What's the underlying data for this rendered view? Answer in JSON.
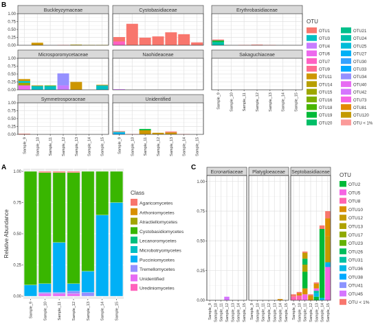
{
  "panel_labels": {
    "a": "A",
    "b": "B",
    "c": "C"
  },
  "chart_data": [
    {
      "id": "B",
      "type": "bar",
      "stacked": true,
      "facets": true,
      "x": [
        "Sample_9",
        "Sample_10",
        "Sample_11",
        "Sample_12",
        "Sample_13",
        "Sample_14",
        "Sample_15"
      ],
      "yticks": [
        "0.00",
        "0.25",
        "0.50",
        "0.75",
        "1.00"
      ],
      "ylim": [
        0,
        1
      ],
      "legend": {
        "title": "OTU",
        "position": "right",
        "entries": [
          {
            "name": "OTU1",
            "color": "#F8766D"
          },
          {
            "name": "OTU3",
            "color": "#00BFC4"
          },
          {
            "name": "OTU4",
            "color": "#C77CFF"
          },
          {
            "name": "OTU6",
            "color": "#ED68ED"
          },
          {
            "name": "OTU7",
            "color": "#FF61C3"
          },
          {
            "name": "OTU9",
            "color": "#FF6C91"
          },
          {
            "name": "OTU11",
            "color": "#CD9600"
          },
          {
            "name": "OTU14",
            "color": "#B79F00"
          },
          {
            "name": "OTU15",
            "color": "#9DA700"
          },
          {
            "name": "OTU16",
            "color": "#7CAE00"
          },
          {
            "name": "OTU18",
            "color": "#49B500"
          },
          {
            "name": "OTU19",
            "color": "#00BA38"
          },
          {
            "name": "OTU20",
            "color": "#00BE67"
          },
          {
            "name": "OTU21",
            "color": "#00C08B"
          },
          {
            "name": "OTU24",
            "color": "#00C1A9"
          },
          {
            "name": "OTU25",
            "color": "#00BCD8"
          },
          {
            "name": "OTU27",
            "color": "#00B0F6"
          },
          {
            "name": "OTU30",
            "color": "#35A2FF"
          },
          {
            "name": "OTU33",
            "color": "#00A9FF"
          },
          {
            "name": "OTU34",
            "color": "#9590FF"
          },
          {
            "name": "OTU40",
            "color": "#E76BF3"
          },
          {
            "name": "OTU42",
            "color": "#D575FE"
          },
          {
            "name": "OTU73",
            "color": "#F564E3"
          },
          {
            "name": "OTU81",
            "color": "#E38900"
          },
          {
            "name": "OTU120",
            "color": "#C49A00"
          },
          {
            "name": "OTU < 1%",
            "color": "#FB9A99"
          }
        ]
      },
      "facet_panels": [
        {
          "title": "Buckleyzymaceae",
          "bars": [
            [],
            [
              {
                "otu": "OTU11",
                "value": 0.08
              }
            ],
            [],
            [
              {
                "otu": "OTU1",
                "value": 0.01
              }
            ],
            [
              {
                "otu": "OTU14",
                "value": 0.02
              }
            ],
            [
              {
                "otu": "OTU14",
                "value": 0.01
              }
            ],
            [
              {
                "otu": "OTU14",
                "value": 0.01
              }
            ]
          ]
        },
        {
          "title": "Cystobasidiaceae",
          "bars": [
            [
              {
                "otu": "OTU7",
                "value": 0.12
              },
              {
                "otu": "OTU1",
                "value": 0.14
              }
            ],
            [
              {
                "otu": "OTU1",
                "value": 0.68
              }
            ],
            [
              {
                "otu": "OTU1",
                "value": 0.24
              }
            ],
            [
              {
                "otu": "OTU1",
                "value": 0.28
              }
            ],
            [
              {
                "otu": "OTU1",
                "value": 0.41
              }
            ],
            [
              {
                "otu": "OTU1",
                "value": 0.35
              }
            ],
            [
              {
                "otu": "OTU1",
                "value": 0.09
              }
            ]
          ]
        },
        {
          "title": "Erythrobasidiaceae",
          "bars": [
            [
              {
                "otu": "OTU24",
                "value": 0.1
              },
              {
                "otu": "OTU19",
                "value": 0.05
              },
              {
                "otu": "OTU1",
                "value": 0.03
              }
            ],
            [],
            [
              {
                "otu": "OTU1",
                "value": 0.01
              }
            ],
            [
              {
                "otu": "OTU1",
                "value": 0.02
              }
            ],
            [
              {
                "otu": "OTU1",
                "value": 0.01
              }
            ],
            [],
            []
          ]
        },
        {
          "title": "Microsporomycetaceae",
          "bars": [
            [
              {
                "otu": "OTU6",
                "value": 0.14
              },
              {
                "otu": "OTU15",
                "value": 0.08
              },
              {
                "otu": "OTU3",
                "value": 0.06
              },
              {
                "otu": "OTU11",
                "value": 0.06
              }
            ],
            [
              {
                "otu": "OTU3",
                "value": 0.12
              },
              {
                "otu": "OTU11",
                "value": 0.02
              }
            ],
            [
              {
                "otu": "OTU3",
                "value": 0.12
              },
              {
                "otu": "OTU16",
                "value": 0.02
              }
            ],
            [
              {
                "otu": "OTU4",
                "value": 0.14
              },
              {
                "otu": "OTU34",
                "value": 0.38
              }
            ],
            [
              {
                "otu": "OTU11",
                "value": 0.25
              }
            ],
            [],
            [
              {
                "otu": "OTU3",
                "value": 0.14
              },
              {
                "otu": "OTU11",
                "value": 0.02
              }
            ]
          ]
        },
        {
          "title": "Naohideaceae",
          "bars": [
            [
              {
                "otu": "OTU42",
                "value": 0.02
              }
            ],
            [],
            [],
            [],
            [],
            [],
            []
          ]
        },
        {
          "title": "Sakaguchiaceae",
          "bars": [
            [],
            [],
            [],
            [],
            [],
            [],
            []
          ]
        },
        {
          "title": "Symmetrosporaceae",
          "bars": [
            [
              {
                "otu": "OTU1",
                "value": 0.02
              }
            ],
            [],
            [],
            [],
            [],
            [],
            []
          ]
        },
        {
          "title": "Unidentified",
          "bars": [
            [
              {
                "otu": "OTU27",
                "value": 0.06
              },
              {
                "otu": "OTU24",
                "value": 0.02
              },
              {
                "otu": "OTU1",
                "value": 0.02
              }
            ],
            [
              {
                "otu": "OTU1",
                "value": 0.01
              }
            ],
            [
              {
                "otu": "OTU11",
                "value": 0.13
              },
              {
                "otu": "OTU19",
                "value": 0.04
              }
            ],
            [
              {
                "otu": "OTU11",
                "value": 0.05
              }
            ],
            [
              {
                "otu": "OTU11",
                "value": 0.06
              },
              {
                "otu": "OTU1",
                "value": 0.03
              }
            ],
            [
              {
                "otu": "OTU1",
                "value": 0.01
              }
            ],
            []
          ]
        }
      ]
    },
    {
      "id": "A",
      "type": "bar",
      "stacked": true,
      "ylabel": "Relative Abundance",
      "x": [
        "Sample_9",
        "Sample_10",
        "Sample_11",
        "Sample_12",
        "Sample_13",
        "Sample_14",
        "Sample_15"
      ],
      "yticks": [
        "0.00",
        "0.25",
        "0.50",
        "0.75",
        "1.00"
      ],
      "ylim": [
        0,
        1
      ],
      "legend": {
        "title": "Class",
        "position": "right",
        "entries": [
          {
            "name": "Agaricomycetes",
            "color": "#F8766D"
          },
          {
            "name": "Arthoniomycetes",
            "color": "#D89000"
          },
          {
            "name": "Atractiellomycetes",
            "color": "#A3A500"
          },
          {
            "name": "Cystobasidiomycetes",
            "color": "#39B600"
          },
          {
            "name": "Lecanoromycetes",
            "color": "#00BF7D"
          },
          {
            "name": "Microbotryomycetes",
            "color": "#00BFC4"
          },
          {
            "name": "Pucciniomycetes",
            "color": "#00B0F6"
          },
          {
            "name": "Tremellomycetes",
            "color": "#9590FF"
          },
          {
            "name": "Unidentified",
            "color": "#E76BF3"
          },
          {
            "name": "Urediniomycetes",
            "color": "#FF62BC"
          }
        ]
      },
      "series": [
        {
          "name": "Urediniomycetes",
          "values": [
            0.0,
            0.0,
            0.0,
            0.0,
            0.0,
            0.0,
            0.0
          ]
        },
        {
          "name": "Unidentified",
          "values": [
            0.0,
            0.02,
            0.02,
            0.02,
            0.0,
            0.0,
            0.0
          ]
        },
        {
          "name": "Tremellomycetes",
          "values": [
            0.0,
            0.01,
            0.01,
            0.02,
            0.03,
            0.0,
            0.0
          ]
        },
        {
          "name": "Pucciniomycetes",
          "values": [
            0.09,
            0.07,
            0.4,
            0.06,
            0.17,
            0.65,
            0.75
          ]
        },
        {
          "name": "Microbotryomycetes",
          "values": [
            0.0,
            0.0,
            0.0,
            0.0,
            0.0,
            0.0,
            0.0
          ]
        },
        {
          "name": "Lecanoromycetes",
          "values": [
            0.0,
            0.0,
            0.0,
            0.0,
            0.0,
            0.0,
            0.0
          ]
        },
        {
          "name": "Cystobasidiomycetes",
          "values": [
            0.91,
            0.89,
            0.56,
            0.89,
            0.8,
            0.35,
            0.25
          ]
        },
        {
          "name": "Atractiellomycetes",
          "values": [
            0.0,
            0.0,
            0.0,
            0.0,
            0.0,
            0.0,
            0.0
          ]
        },
        {
          "name": "Arthoniomycetes",
          "values": [
            0.0,
            0.0,
            0.0,
            0.0,
            0.0,
            0.0,
            0.0
          ]
        },
        {
          "name": "Agaricomycetes",
          "values": [
            0.0,
            0.01,
            0.01,
            0.01,
            0.0,
            0.0,
            0.0
          ]
        }
      ]
    },
    {
      "id": "C",
      "type": "bar",
      "stacked": true,
      "facets": true,
      "x": [
        "Sample_9",
        "Sample_10",
        "Sample_11",
        "Sample_12",
        "Sample_13",
        "Sample_14",
        "Sample_15"
      ],
      "yticks": [
        "0.00",
        "0.25",
        "0.50",
        "0.75",
        "1.00"
      ],
      "ylim": [
        0,
        1
      ],
      "legend": {
        "title": "OTU",
        "position": "right",
        "entries": [
          {
            "name": "OTU2",
            "color": "#00BA38"
          },
          {
            "name": "OTU5",
            "color": "#F564E3"
          },
          {
            "name": "OTU8",
            "color": "#FF64B0"
          },
          {
            "name": "OTU10",
            "color": "#DB8E00"
          },
          {
            "name": "OTU12",
            "color": "#C49A00"
          },
          {
            "name": "OTU13",
            "color": "#AEA200"
          },
          {
            "name": "OTU17",
            "color": "#8FAA00"
          },
          {
            "name": "OTU23",
            "color": "#64B200"
          },
          {
            "name": "OTU26",
            "color": "#00BD5C"
          },
          {
            "name": "OTU31",
            "color": "#00C1A3"
          },
          {
            "name": "OTU36",
            "color": "#00B8E7"
          },
          {
            "name": "OTU38",
            "color": "#00A9FF"
          },
          {
            "name": "OTU41",
            "color": "#8B93FF"
          },
          {
            "name": "OTU45",
            "color": "#D575FE"
          },
          {
            "name": "OTU < 1%",
            "color": "#F8766D"
          }
        ]
      },
      "facet_panels": [
        {
          "title": "Ecronartiaceae",
          "bars": [
            [],
            [],
            [],
            [
              {
                "otu": "OTU45",
                "value": 0.03
              }
            ],
            [],
            [],
            []
          ]
        },
        {
          "title": "Platygloeaceae",
          "bars": [
            [],
            [],
            [],
            [],
            [],
            [
              {
                "otu": "OTU10",
                "value": 0.01
              }
            ],
            []
          ]
        },
        {
          "title": "Septobasidiaceae",
          "bars": [
            [
              {
                "otu": "OTU8",
                "value": 0.03
              },
              {
                "otu": "OTU < 1%",
                "value": 0.02
              }
            ],
            [
              {
                "otu": "OTU8",
                "value": 0.04
              },
              {
                "otu": "OTU10",
                "value": 0.02
              },
              {
                "otu": "OTU < 1%",
                "value": 0.01
              }
            ],
            [
              {
                "otu": "OTU5",
                "value": 0.05
              },
              {
                "otu": "OTU10",
                "value": 0.05
              },
              {
                "otu": "OTU2",
                "value": 0.14
              },
              {
                "otu": "OTU13",
                "value": 0.06
              },
              {
                "otu": "OTU26",
                "value": 0.05
              },
              {
                "otu": "OTU12",
                "value": 0.05
              },
              {
                "otu": "OTU < 1%",
                "value": 0.01
              }
            ],
            [
              {
                "otu": "OTU10",
                "value": 0.04
              },
              {
                "otu": "OTU < 1%",
                "value": 0.01
              }
            ],
            [
              {
                "otu": "OTU2",
                "value": 0.03
              },
              {
                "otu": "OTU36",
                "value": 0.03
              },
              {
                "otu": "OTU31",
                "value": 0.02
              },
              {
                "otu": "OTU5",
                "value": 0.02
              },
              {
                "otu": "OTU10",
                "value": 0.04
              },
              {
                "otu": "OTU < 1%",
                "value": 0.01
              }
            ],
            [
              {
                "otu": "OTU36",
                "value": 0.02
              },
              {
                "otu": "OTU2",
                "value": 0.58
              },
              {
                "otu": "OTU < 1%",
                "value": 0.03
              }
            ],
            [
              {
                "otu": "OTU5",
                "value": 0.28
              },
              {
                "otu": "OTU38",
                "value": 0.02
              },
              {
                "otu": "OTU36",
                "value": 0.02
              },
              {
                "otu": "OTU12",
                "value": 0.22
              },
              {
                "otu": "OTU10",
                "value": 0.15
              },
              {
                "otu": "OTU < 1%",
                "value": 0.06
              }
            ]
          ]
        }
      ]
    }
  ]
}
